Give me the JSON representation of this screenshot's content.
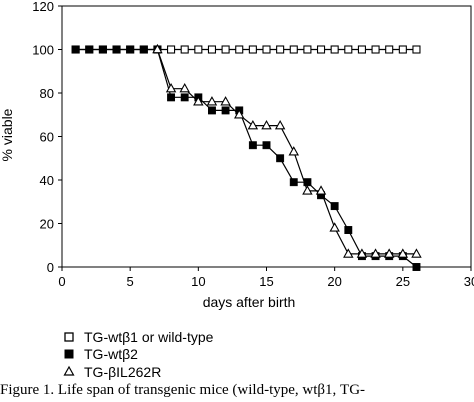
{
  "chart_data": {
    "type": "line",
    "xlabel": "days after birth",
    "ylabel": "% viable",
    "xlim": [
      0,
      30
    ],
    "ylim": [
      0,
      120
    ],
    "xticks": [
      0,
      5,
      10,
      15,
      20,
      25,
      30
    ],
    "yticks": [
      0,
      20,
      40,
      60,
      80,
      100,
      120
    ],
    "grid": false,
    "legend_position": "bottom-left",
    "series": [
      {
        "name": "TG-wtβ1 or wild-type",
        "marker": "open-square",
        "x": [
          1,
          2,
          3,
          4,
          5,
          6,
          7,
          8,
          9,
          10,
          11,
          12,
          13,
          14,
          15,
          16,
          17,
          18,
          19,
          20,
          21,
          22,
          23,
          24,
          25,
          26
        ],
        "y": [
          100,
          100,
          100,
          100,
          100,
          100,
          100,
          100,
          100,
          100,
          100,
          100,
          100,
          100,
          100,
          100,
          100,
          100,
          100,
          100,
          100,
          100,
          100,
          100,
          100,
          100
        ]
      },
      {
        "name": "TG-wtβ2",
        "marker": "filled-square",
        "x": [
          1,
          2,
          3,
          4,
          5,
          6,
          7,
          8,
          9,
          10,
          11,
          12,
          13,
          14,
          15,
          16,
          17,
          18,
          19,
          20,
          21,
          22,
          23,
          24,
          25,
          26
        ],
        "y": [
          100,
          100,
          100,
          100,
          100,
          100,
          100,
          78,
          78,
          78,
          72,
          72,
          72,
          56,
          56,
          50,
          39,
          39,
          33,
          28,
          17,
          5,
          5,
          5,
          5,
          0
        ]
      },
      {
        "name": "TG-βIL262R",
        "marker": "open-triangle",
        "x": [
          7,
          8,
          9,
          10,
          11,
          12,
          13,
          14,
          15,
          16,
          17,
          18,
          19,
          20,
          21,
          22,
          23,
          24,
          25,
          26
        ],
        "y": [
          100,
          82,
          82,
          76,
          76,
          76,
          70,
          65,
          65,
          65,
          53,
          35,
          35,
          18,
          6,
          6,
          6,
          6,
          6,
          6
        ]
      }
    ]
  },
  "caption": "Figure 1. Life span of transgenic mice (wild-type, wtβ1, TG-"
}
